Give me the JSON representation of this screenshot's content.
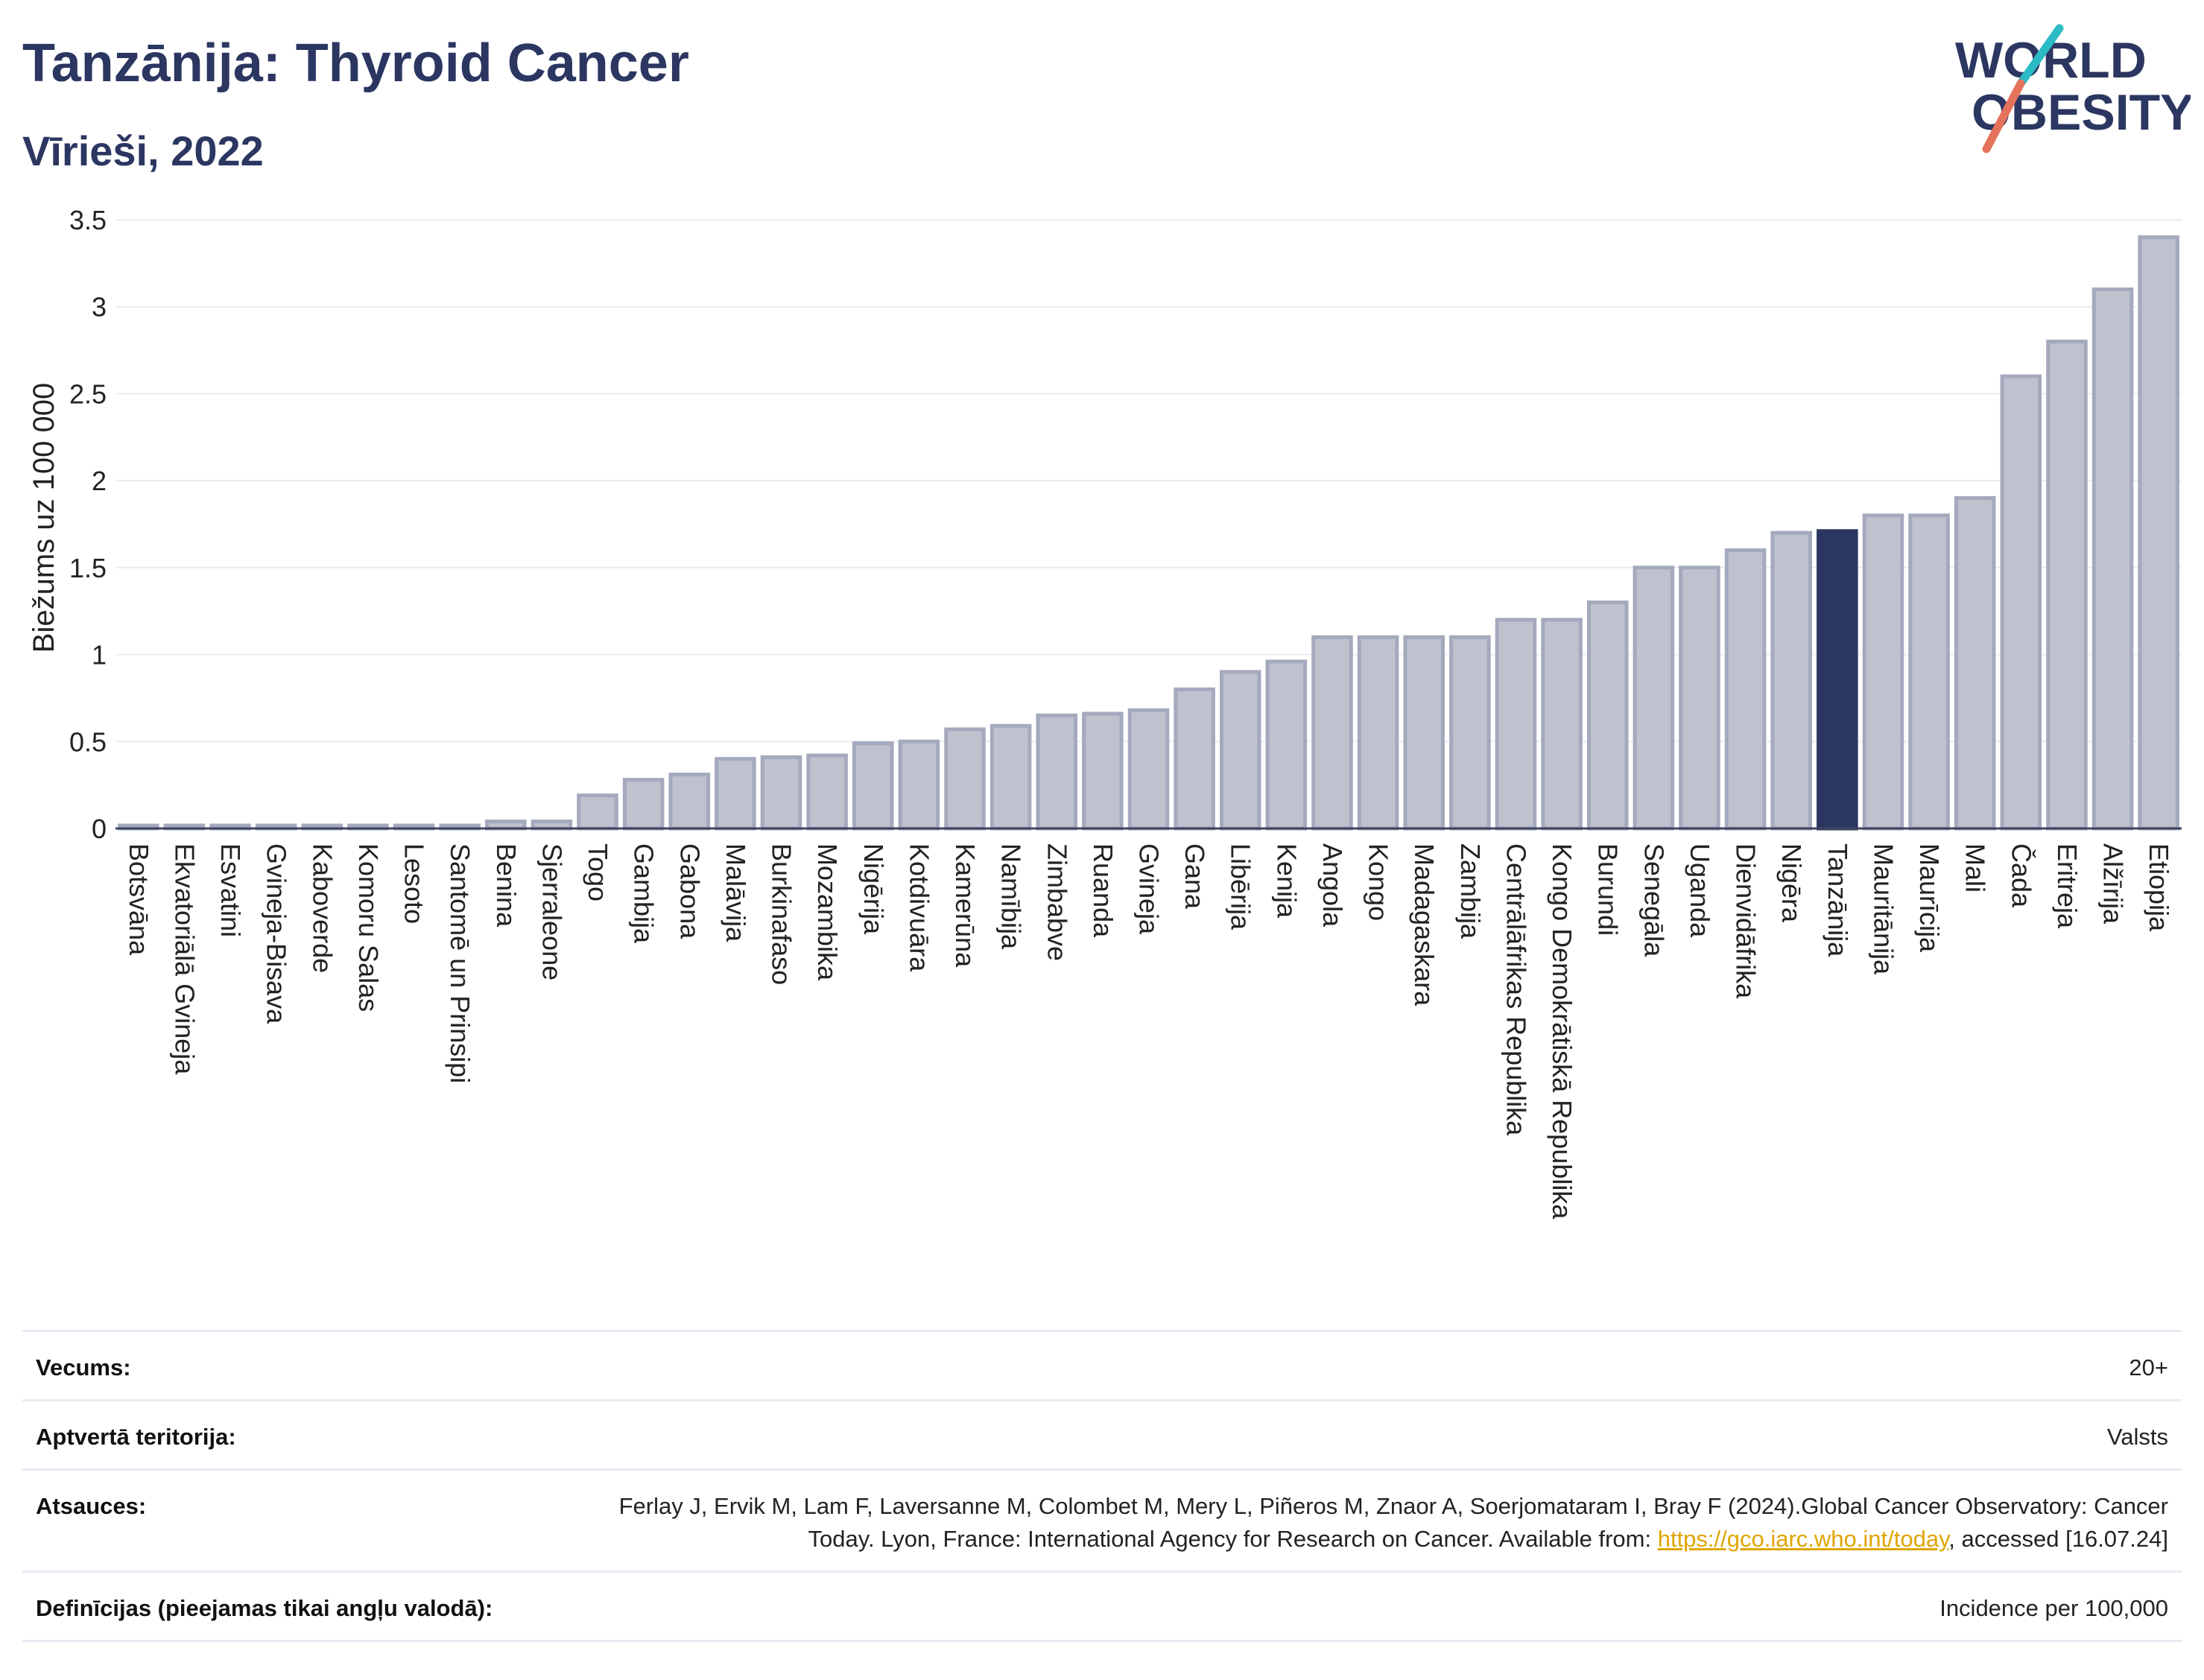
{
  "header": {
    "title": "Tanzānija: Thyroid Cancer",
    "subtitle": "Vīrieši, 2022"
  },
  "logo": {
    "line1": "WORLD",
    "line2": "OBESITY",
    "accent_colors": [
      "#2bbbc4",
      "#e5735c"
    ],
    "text_color": "#2b3661"
  },
  "colors": {
    "bar_default": "#bec2cf",
    "bar_border": "#a4a9bd",
    "bar_highlight": "#2b3661",
    "text_dark": "#2b3661",
    "grid": "#e8ecf2",
    "link": "#e0a500"
  },
  "chart_data": {
    "type": "bar",
    "title": "Tanzānija: Thyroid Cancer",
    "subtitle": "Vīrieši, 2022",
    "ylabel": "Biežums uz 100 000",
    "xlabel": "",
    "ylim": [
      0,
      3.5
    ],
    "yticks": [
      0,
      0.5,
      1,
      1.5,
      2,
      2.5,
      3,
      3.5
    ],
    "ytick_labels": [
      "0",
      "0.5",
      "1",
      "1.5",
      "2",
      "2.5",
      "3",
      "3.5"
    ],
    "grid": true,
    "highlight": "Tanzānija",
    "categories": [
      "Botsvāna",
      "Ekvatoriālā Gvineja",
      "Esvatini",
      "Gvineja-Bisava",
      "Kaboverde",
      "Komoru Salas",
      "Lesoto",
      "Santomē un Prinsipi",
      "Benina",
      "Sjerraleone",
      "Togo",
      "Gambija",
      "Gabona",
      "Malāvija",
      "Burkinafaso",
      "Mozambika",
      "Nigērija",
      "Kotdivuāra",
      "Kamerūna",
      "Namībija",
      "Zimbabve",
      "Ruanda",
      "Gvineja",
      "Gana",
      "Libērija",
      "Kenija",
      "Angola",
      "Kongo",
      "Madagaskara",
      "Zambija",
      "Centrālāfrikas Republika",
      "Kongo Demokrātiskā Republika",
      "Burundi",
      "Senegāla",
      "Uganda",
      "Dienvidāfrika",
      "Nigēra",
      "Tanzānija",
      "Mauritānija",
      "Maurīcija",
      "Mali",
      "Čada",
      "Eritreja",
      "Alžīrija",
      "Etiopija"
    ],
    "values": [
      0.01,
      0.01,
      0.01,
      0.01,
      0.01,
      0.01,
      0.01,
      0.01,
      0.04,
      0.04,
      0.19,
      0.28,
      0.31,
      0.4,
      0.41,
      0.42,
      0.49,
      0.5,
      0.57,
      0.59,
      0.65,
      0.66,
      0.68,
      0.8,
      0.9,
      0.96,
      1.1,
      1.1,
      1.1,
      1.1,
      1.2,
      1.2,
      1.3,
      1.5,
      1.5,
      1.6,
      1.7,
      1.71,
      1.8,
      1.8,
      1.9,
      2.6,
      2.8,
      3.1,
      3.4
    ]
  },
  "meta": [
    {
      "label": "Vecums:",
      "value": "20+"
    },
    {
      "label": "Aptvertā teritorija:",
      "value": "Valsts"
    },
    {
      "label": "Atsauces:",
      "value_before": "Ferlay J, Ervik M, Lam F, Laversanne M, Colombet M, Mery L, Piñeros M, Znaor A, Soerjomataram I, Bray F (2024).Global Cancer Observatory: Cancer Today. Lyon, France: International Agency for Research on Cancer. Available from: ",
      "link": "https://gco.iarc.who.int/today",
      "value_after": ", accessed [16.07.24]"
    },
    {
      "label": "Definīcijas (pieejamas tikai angļu valodā):",
      "value": "Incidence per 100,000"
    }
  ]
}
